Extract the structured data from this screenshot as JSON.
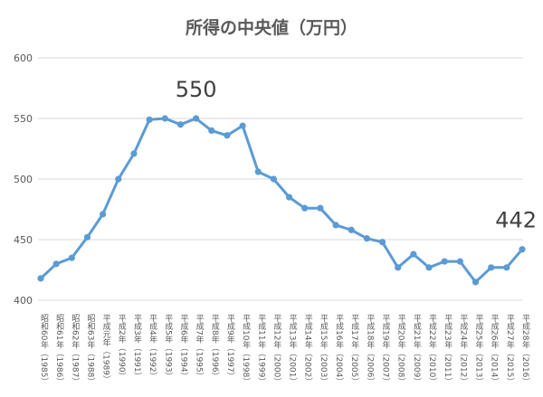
{
  "chart_data": {
    "type": "line",
    "title": "所得の中央値（万円）",
    "xlabel": "",
    "ylabel": "",
    "ylim": [
      400,
      600
    ],
    "yticks": [
      400,
      450,
      500,
      550,
      600
    ],
    "grid": true,
    "line_color": "#5b9bd5",
    "categories": [
      "昭和60年（1985）",
      "昭和61年（1986）",
      "昭和62年（1987）",
      "昭和63年（1988）",
      "平成元年（1989）",
      "平成2年（1990）",
      "平成3年（1991）",
      "平成4年（1992）",
      "平成5年（1993）",
      "平成6年（1994）",
      "平成7年（1995）",
      "平成8年（1996）",
      "平成9年（1997）",
      "平成10年（1998）",
      "平成11年（1999）",
      "平成12年（2000）",
      "平成13年（2001）",
      "平成14年（2002）",
      "平成15年（2003）",
      "平成16年（2004）",
      "平成17年（2005）",
      "平成18年（2006）",
      "平成19年（2007）",
      "平成20年（2008）",
      "平成21年（2009）",
      "平成22年（2010）",
      "平成23年（2011）",
      "平成24年（2012）",
      "平成25年（2013）",
      "平成26年（2014）",
      "平成27年（2015）",
      "平成28年（2016）"
    ],
    "values": [
      418,
      430,
      435,
      452,
      471,
      500,
      521,
      549,
      550,
      545,
      550,
      540,
      536,
      544,
      506,
      500,
      485,
      476,
      476,
      462,
      458,
      451,
      448,
      427,
      438,
      427,
      432,
      432,
      415,
      427,
      427,
      442
    ],
    "annotations": [
      {
        "index": 10,
        "text": "550"
      },
      {
        "index": 31,
        "text": "442"
      }
    ]
  }
}
